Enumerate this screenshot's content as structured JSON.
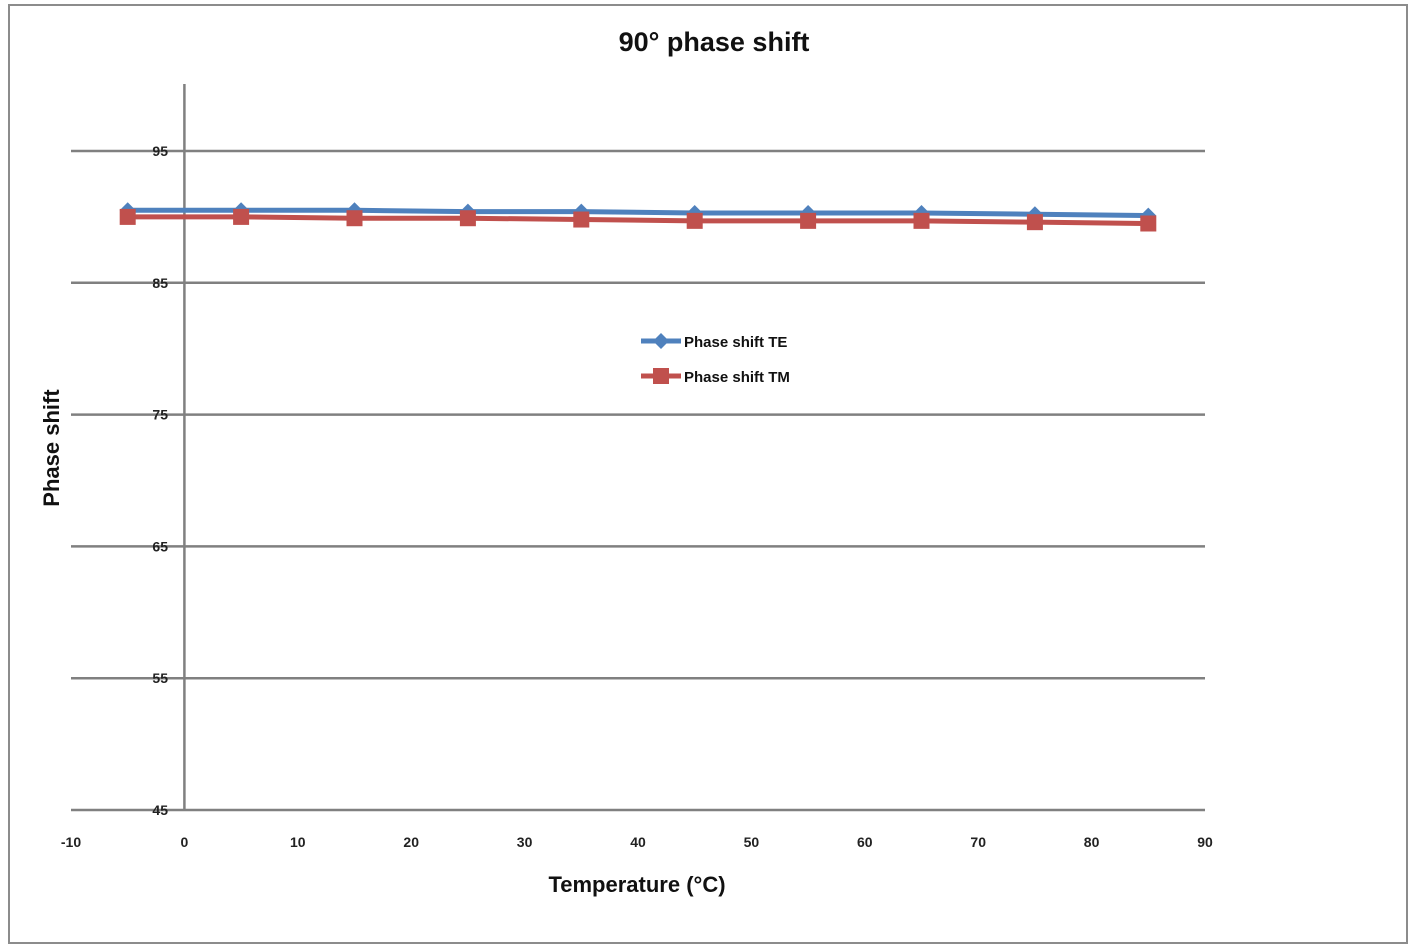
{
  "chart_data": {
    "type": "line",
    "title": "90° phase shift",
    "xlabel": "Temperature (°C)",
    "ylabel": "Phase shift",
    "xlim": [
      -10,
      90
    ],
    "ylim": [
      45,
      100
    ],
    "x_ticks": [
      -10,
      0,
      10,
      20,
      30,
      40,
      50,
      60,
      70,
      80,
      90
    ],
    "y_ticks": [
      45,
      55,
      65,
      75,
      85,
      95
    ],
    "grid": "horizontal",
    "legend_position": "center",
    "x": [
      -5,
      5,
      15,
      25,
      35,
      45,
      55,
      65,
      75,
      85
    ],
    "series": [
      {
        "name": "Phase shift TE",
        "color": "#4f81bd",
        "marker": "diamond",
        "values": [
          90.5,
          90.5,
          90.5,
          90.4,
          90.4,
          90.3,
          90.3,
          90.3,
          90.2,
          90.1
        ]
      },
      {
        "name": "Phase shift TM",
        "color": "#c0504d",
        "marker": "square",
        "values": [
          90.0,
          90.0,
          89.9,
          89.9,
          89.8,
          89.7,
          89.7,
          89.7,
          89.6,
          89.5
        ]
      }
    ]
  }
}
